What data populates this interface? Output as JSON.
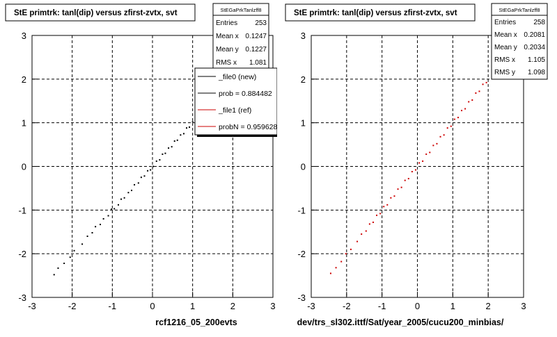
{
  "chart_data": [
    {
      "type": "scatter",
      "title": "StE primtrk: tanl(dip) versus zfirst-zvtx, svt",
      "xlabel": "rcf1216_05_200evts",
      "ylabel": "",
      "xlim": [
        -3,
        3
      ],
      "ylim": [
        -3,
        3
      ],
      "xticks": [
        "-3",
        "-2",
        "-1",
        "0",
        "1",
        "2",
        "3"
      ],
      "yticks": [
        "-3",
        "-2",
        "-1",
        "0",
        "1",
        "2",
        "3"
      ],
      "grid": true,
      "point_color": "#000000",
      "stats_title": "StEGaPrkTanlzff8",
      "stats": [
        {
          "label": "Entries",
          "value": "253"
        },
        {
          "label": "Mean x",
          "value": "0.1247"
        },
        {
          "label": "Mean y",
          "value": "0.1227"
        },
        {
          "label": "RMS x",
          "value": "1.081"
        }
      ],
      "legend": [
        {
          "label": "_file0 (new)",
          "color": "#000000"
        },
        {
          "label": "prob = 0.884482",
          "color": "#000000"
        },
        {
          "label": "_file1 (ref)",
          "color": "#cc0000"
        },
        {
          "label": "probN = 0.959628",
          "color": "#cc0000"
        }
      ],
      "points": [
        [
          -2.45,
          -2.48
        ],
        [
          -2.35,
          -2.33
        ],
        [
          -2.2,
          -2.22
        ],
        [
          -2.05,
          -2.08
        ],
        [
          -1.95,
          -1.93
        ],
        [
          -1.75,
          -1.78
        ],
        [
          -1.62,
          -1.6
        ],
        [
          -1.5,
          -1.52
        ],
        [
          -1.42,
          -1.38
        ],
        [
          -1.3,
          -1.33
        ],
        [
          -1.22,
          -1.2
        ],
        [
          -1.1,
          -1.13
        ],
        [
          -1.02,
          -0.98
        ],
        [
          -0.95,
          -0.97
        ],
        [
          -0.85,
          -0.88
        ],
        [
          -0.78,
          -0.75
        ],
        [
          -0.7,
          -0.72
        ],
        [
          -0.6,
          -0.6
        ],
        [
          -0.52,
          -0.55
        ],
        [
          -0.45,
          -0.42
        ],
        [
          -0.35,
          -0.38
        ],
        [
          -0.28,
          -0.25
        ],
        [
          -0.2,
          -0.22
        ],
        [
          -0.12,
          -0.1
        ],
        [
          -0.05,
          -0.08
        ],
        [
          0.02,
          0.0
        ],
        [
          0.1,
          0.12
        ],
        [
          0.18,
          0.15
        ],
        [
          0.25,
          0.28
        ],
        [
          0.32,
          0.3
        ],
        [
          0.4,
          0.42
        ],
        [
          0.48,
          0.45
        ],
        [
          0.55,
          0.58
        ],
        [
          0.62,
          0.6
        ],
        [
          0.7,
          0.72
        ],
        [
          0.78,
          0.75
        ],
        [
          0.85,
          0.88
        ],
        [
          0.92,
          0.9
        ],
        [
          1.0,
          1.02
        ],
        [
          1.08,
          1.05
        ],
        [
          1.15,
          1.18
        ],
        [
          1.25,
          1.22
        ],
        [
          1.35,
          1.38
        ],
        [
          1.45,
          1.42
        ],
        [
          1.55,
          1.58
        ],
        [
          1.7,
          1.68
        ],
        [
          1.85,
          1.88
        ]
      ]
    },
    {
      "type": "scatter",
      "title": "StE primtrk: tanl(dip) versus zfirst-zvtx, svt",
      "xlabel": "dev/trs_sl302.ittf/Sat/year_2005/cucu200_minbias/",
      "ylabel": "",
      "xlim": [
        -3,
        3
      ],
      "ylim": [
        -3,
        3
      ],
      "xticks": [
        "-3",
        "-2",
        "-1",
        "0",
        "1",
        "2",
        "3"
      ],
      "yticks": [
        "-3",
        "-2",
        "-1",
        "0",
        "1",
        "2",
        "3"
      ],
      "grid": true,
      "point_color": "#cc0000",
      "stats_title": "StEGaPrkTanlzff8",
      "stats": [
        {
          "label": "Entries",
          "value": "258"
        },
        {
          "label": "Mean x",
          "value": "0.2081"
        },
        {
          "label": "Mean y",
          "value": "0.2034"
        },
        {
          "label": "RMS x",
          "value": "1.105"
        },
        {
          "label": "RMS y",
          "value": "1.098"
        }
      ],
      "points": [
        [
          -2.45,
          -2.45
        ],
        [
          -2.3,
          -2.32
        ],
        [
          -2.15,
          -2.18
        ],
        [
          -2.02,
          -2.0
        ],
        [
          -1.88,
          -1.9
        ],
        [
          -1.7,
          -1.72
        ],
        [
          -1.58,
          -1.55
        ],
        [
          -1.45,
          -1.48
        ],
        [
          -1.35,
          -1.32
        ],
        [
          -1.25,
          -1.28
        ],
        [
          -1.15,
          -1.12
        ],
        [
          -1.05,
          -1.08
        ],
        [
          -0.95,
          -0.92
        ],
        [
          -0.85,
          -0.88
        ],
        [
          -0.75,
          -0.72
        ],
        [
          -0.65,
          -0.68
        ],
        [
          -0.55,
          -0.52
        ],
        [
          -0.45,
          -0.48
        ],
        [
          -0.35,
          -0.32
        ],
        [
          -0.25,
          -0.28
        ],
        [
          -0.15,
          -0.12
        ],
        [
          -0.05,
          -0.08
        ],
        [
          0.05,
          0.08
        ],
        [
          0.15,
          0.12
        ],
        [
          0.25,
          0.28
        ],
        [
          0.35,
          0.32
        ],
        [
          0.45,
          0.48
        ],
        [
          0.55,
          0.52
        ],
        [
          0.65,
          0.68
        ],
        [
          0.75,
          0.72
        ],
        [
          0.85,
          0.88
        ],
        [
          0.95,
          0.92
        ],
        [
          1.05,
          1.08
        ],
        [
          1.15,
          1.12
        ],
        [
          1.25,
          1.28
        ],
        [
          1.35,
          1.32
        ],
        [
          1.45,
          1.48
        ],
        [
          1.55,
          1.52
        ],
        [
          1.65,
          1.68
        ],
        [
          1.75,
          1.72
        ],
        [
          1.85,
          1.88
        ],
        [
          1.95,
          1.92
        ]
      ]
    }
  ]
}
